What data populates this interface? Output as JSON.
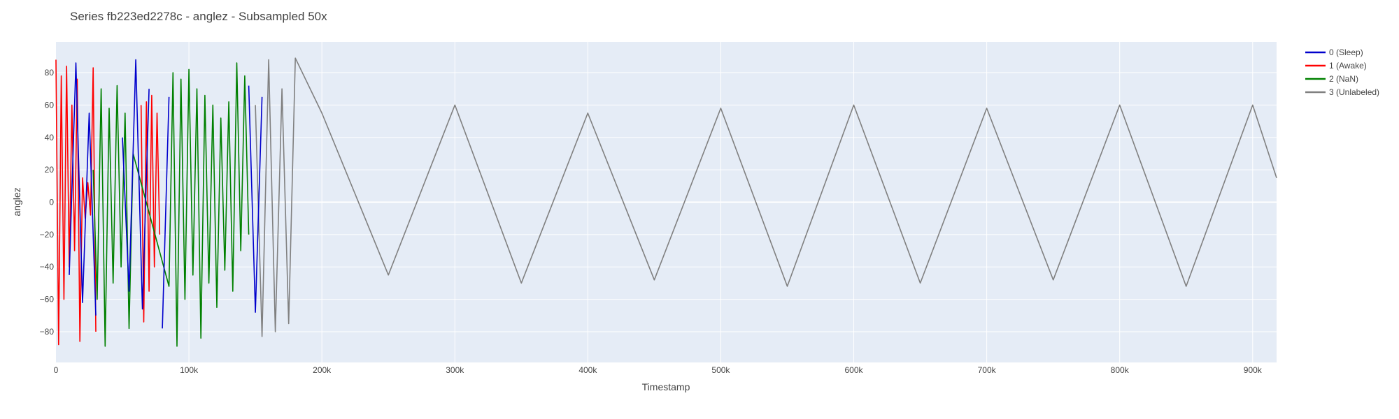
{
  "chart_data": {
    "type": "line",
    "title": "Series fb223ed2278c - anglez - Subsampled 50x",
    "xlabel": "Timestamp",
    "ylabel": "anglez",
    "xlim": [
      0,
      918000
    ],
    "ylim": [
      -99,
      99
    ],
    "x_ticks": [
      {
        "value": 0,
        "label": "0"
      },
      {
        "value": 100000,
        "label": "100k"
      },
      {
        "value": 200000,
        "label": "200k"
      },
      {
        "value": 300000,
        "label": "300k"
      },
      {
        "value": 400000,
        "label": "400k"
      },
      {
        "value": 500000,
        "label": "500k"
      },
      {
        "value": 600000,
        "label": "600k"
      },
      {
        "value": 700000,
        "label": "700k"
      },
      {
        "value": 800000,
        "label": "800k"
      },
      {
        "value": 900000,
        "label": "900k"
      }
    ],
    "y_ticks": [
      {
        "value": 80,
        "label": "80"
      },
      {
        "value": 60,
        "label": "60"
      },
      {
        "value": 40,
        "label": "40"
      },
      {
        "value": 20,
        "label": "20"
      },
      {
        "value": 0,
        "label": "0"
      },
      {
        "value": -20,
        "label": "−20"
      },
      {
        "value": -40,
        "label": "−40"
      },
      {
        "value": -60,
        "label": "−60"
      },
      {
        "value": -80,
        "label": "−80"
      }
    ],
    "grid": true,
    "legend_position": "top-right",
    "plot_background": "#e5ecf6",
    "series": [
      {
        "name": "0 (Sleep)",
        "color": "#0000cc",
        "x": [
          0,
          5000,
          10000,
          15000,
          20000,
          25000,
          30000,
          35000,
          40000,
          45000,
          50000,
          55000,
          60000,
          65000,
          70000,
          75000,
          80000,
          85000,
          90000,
          95000,
          100000,
          105000,
          110000,
          115000,
          120000,
          125000,
          130000,
          135000,
          140000,
          145000,
          150000,
          155000
        ],
        "y": [
          null,
          null,
          -45,
          86,
          -62,
          55,
          -70,
          null,
          null,
          null,
          40,
          -55,
          88,
          -66,
          70,
          null,
          -78,
          65,
          null,
          null,
          null,
          null,
          null,
          null,
          null,
          null,
          null,
          null,
          null,
          72,
          -68,
          65
        ]
      },
      {
        "name": "1 (Awake)",
        "color": "#ff0000",
        "x": [
          0,
          2000,
          4000,
          6000,
          8000,
          10000,
          12000,
          14000,
          16000,
          18000,
          20000,
          22000,
          24000,
          26000,
          28000,
          30000,
          32000,
          34000,
          36000,
          38000,
          40000,
          42000,
          44000,
          46000,
          48000,
          50000,
          52000,
          54000,
          56000,
          58000,
          60000,
          62000,
          64000,
          66000,
          68000,
          70000,
          72000,
          74000,
          76000,
          78000,
          80000
        ],
        "y": [
          88,
          -88,
          78,
          -60,
          84,
          -40,
          60,
          -30,
          76,
          -86,
          15,
          -10,
          12,
          -8,
          83,
          -80,
          null,
          null,
          null,
          null,
          null,
          null,
          null,
          null,
          null,
          null,
          null,
          null,
          null,
          null,
          null,
          null,
          60,
          -74,
          62,
          -55,
          66,
          -40,
          55,
          -20,
          null
        ]
      },
      {
        "name": "2 (NaN)",
        "color": "#008000",
        "x": [
          28000,
          31000,
          34000,
          37000,
          40000,
          43000,
          46000,
          49000,
          52000,
          55000,
          58000,
          85000,
          88000,
          91000,
          94000,
          97000,
          100000,
          103000,
          106000,
          109000,
          112000,
          115000,
          118000,
          121000,
          124000,
          127000,
          130000,
          133000,
          136000,
          139000,
          142000,
          145000
        ],
        "y": [
          20,
          -60,
          70,
          -89,
          58,
          -50,
          72,
          -40,
          55,
          -78,
          30,
          -52,
          80,
          -89,
          76,
          -60,
          82,
          -45,
          70,
          -84,
          66,
          -50,
          60,
          -65,
          52,
          -42,
          62,
          -55,
          86,
          -30,
          78,
          -20
        ]
      },
      {
        "name": "3 (Unlabeled)",
        "color": "#808080",
        "x": [
          150000,
          155000,
          160000,
          165000,
          170000,
          175000,
          180000,
          200000,
          250000,
          300000,
          350000,
          400000,
          450000,
          500000,
          550000,
          600000,
          650000,
          700000,
          750000,
          800000,
          850000,
          900000,
          918000
        ],
        "y": [
          60,
          -83,
          88,
          -80,
          70,
          -75,
          89,
          55,
          -45,
          60,
          -50,
          55,
          -48,
          58,
          -52,
          60,
          -50,
          58,
          -48,
          60,
          -52,
          60,
          15
        ]
      }
    ]
  }
}
